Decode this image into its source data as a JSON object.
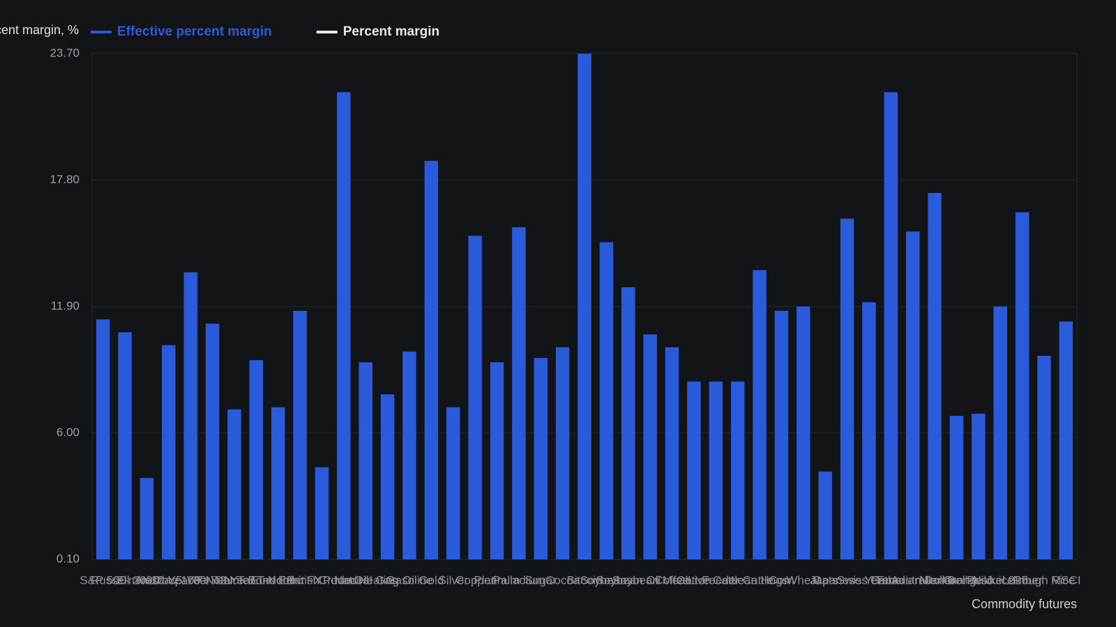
{
  "chart_data": {
    "type": "bar",
    "y_label": "Percent margin, %",
    "x_label": "Commodity futures",
    "categories": [
      "S&P 500",
      "Russell 2000",
      "E-mini Dow",
      "Nasdaq 100",
      "10-Year T-Note",
      "5-Year T-Note",
      "30-Year T-Bond",
      "2-Year T-Note",
      "Eurodollar",
      "Euro FX",
      "British Pound",
      "Crude Oil",
      "Natural Gas",
      "Heating Oil",
      "Gasoline",
      "Gold",
      "Silver",
      "Copper",
      "Platinum",
      "Palladium",
      "Sugar",
      "Cocoa",
      "Bitcoin",
      "Soybeans",
      "Soybean Oil",
      "Soybean Meal",
      "Coffee",
      "Cotton",
      "Live Cattle",
      "Feeder Cattle",
      "Lean Hogs",
      "Corn",
      "Wheat",
      "Oats",
      "Japanese Yen",
      "Swiss Franc",
      "Ether",
      "Canadian Dollar",
      "Australian Dollar",
      "Mexican Peso",
      "Orange Juice",
      "Nikkei 225",
      "Lumber",
      "Rough Rice",
      "MSCI"
    ],
    "series": [
      {
        "name": "Effective percent margin",
        "color": "#2a5bdb",
        "values": [
          11.3,
          10.7,
          3.9,
          10.1,
          13.5,
          11.1,
          7.1,
          9.4,
          7.2,
          11.7,
          4.4,
          21.9,
          9.3,
          7.8,
          9.8,
          18.7,
          7.2,
          15.2,
          9.3,
          15.6,
          9.5,
          10.0,
          23.7,
          14.9,
          12.8,
          10.6,
          10.0,
          8.4,
          8.4,
          8.4,
          13.6,
          11.7,
          11.9,
          4.2,
          16.0,
          12.1,
          21.9,
          15.4,
          17.2,
          6.8,
          6.9,
          11.9,
          16.3,
          9.6,
          11.2
        ]
      },
      {
        "name": "Percent margin",
        "color": "#e8e8e8",
        "values": [
          null,
          null,
          null,
          null,
          null,
          null,
          null,
          null,
          null,
          null,
          null,
          null,
          null,
          null,
          null,
          null,
          null,
          null,
          null,
          null,
          null,
          null,
          null,
          null,
          null,
          null,
          null,
          null,
          null,
          null,
          null,
          null,
          null,
          null,
          null,
          null,
          null,
          null,
          null,
          null,
          null,
          null,
          null,
          null,
          null
        ]
      }
    ],
    "ylim": [
      0.1,
      23.7
    ],
    "yticks": [
      {
        "value": 0.1,
        "label": "0.10"
      },
      {
        "value": 6,
        "label": "6.00"
      },
      {
        "value": 11.9,
        "label": "11.90"
      },
      {
        "value": 17.8,
        "label": "17.80"
      },
      {
        "value": 23.7,
        "label": "23.70"
      }
    ],
    "grid": true
  }
}
